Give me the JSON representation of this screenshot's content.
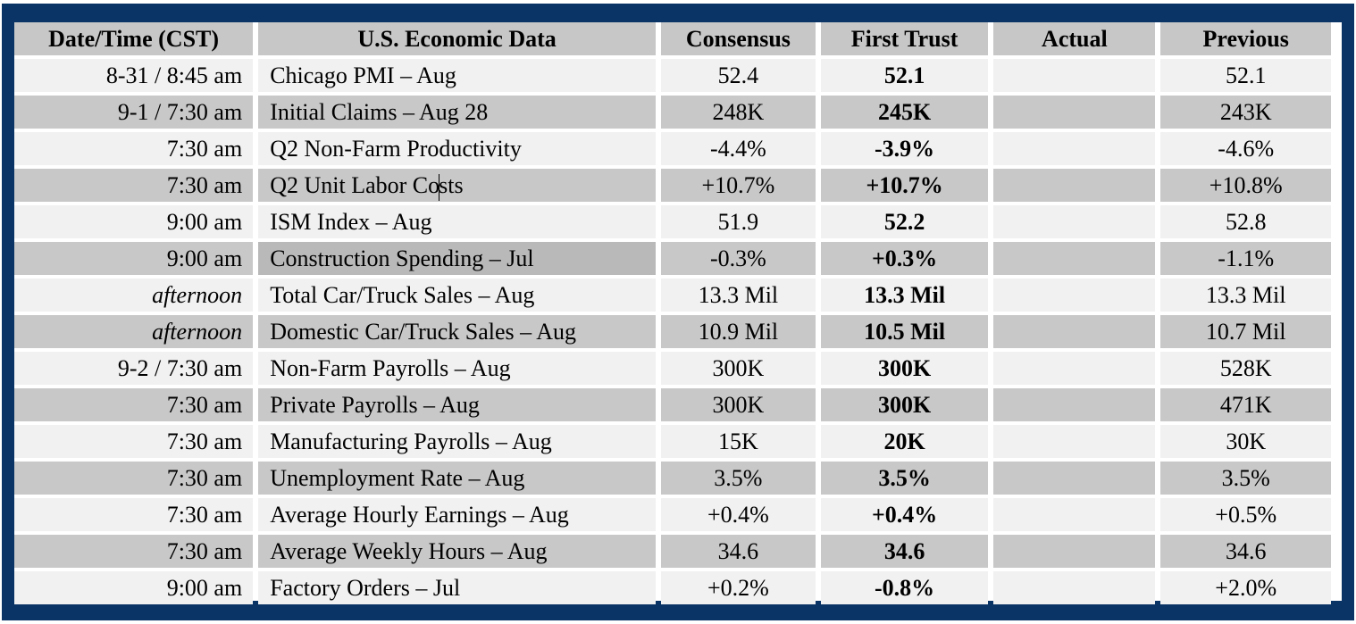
{
  "colors": {
    "frame": "#0b3466",
    "header_bg": "#c7c7c7",
    "row_light": "#f1f1f1",
    "row_dark": "#c8c8c8"
  },
  "headers": {
    "date": "Date/Time (CST)",
    "data": "U.S. Economic Data",
    "consensus": "Consensus",
    "first_trust": "First Trust",
    "actual": "Actual",
    "previous": "Previous"
  },
  "rows": [
    {
      "date": "8-31 / 8:45 am",
      "name": "Chicago PMI – Aug",
      "consensus": "52.4",
      "first_trust": "52.1",
      "actual": "",
      "previous": "52.1"
    },
    {
      "date": "9-1 / 7:30 am",
      "name": "Initial Claims – Aug 28",
      "consensus": "248K",
      "first_trust": "245K",
      "actual": "",
      "previous": "243K"
    },
    {
      "date": "7:30 am",
      "name": "Q2 Non-Farm Productivity",
      "consensus": "-4.4%",
      "first_trust": "-3.9%",
      "actual": "",
      "previous": "-4.6%"
    },
    {
      "date": "7:30 am",
      "name_a": "Q2 Unit Labor Co",
      "name_b": "sts",
      "consensus": "+10.7%",
      "first_trust": "+10.7%",
      "actual": "",
      "previous": "+10.8%"
    },
    {
      "date": "9:00 am",
      "name": "ISM Index – Aug",
      "consensus": "51.9",
      "first_trust": "52.2",
      "actual": "",
      "previous": "52.8"
    },
    {
      "date": "9:00 am",
      "name": "Construction Spending – Jul",
      "consensus": "-0.3%",
      "first_trust": "+0.3%",
      "actual": "",
      "previous": "-1.1%"
    },
    {
      "date": "afternoon",
      "name": "Total Car/Truck Sales – Aug",
      "consensus": "13.3 Mil",
      "first_trust": "13.3 Mil",
      "actual": "",
      "previous": "13.3 Mil"
    },
    {
      "date": "afternoon",
      "name": "Domestic Car/Truck Sales – Aug",
      "consensus": "10.9 Mil",
      "first_trust": "10.5 Mil",
      "actual": "",
      "previous": "10.7 Mil"
    },
    {
      "date": "9-2 / 7:30 am",
      "name": "Non-Farm Payrolls – Aug",
      "consensus": "300K",
      "first_trust": "300K",
      "actual": "",
      "previous": "528K"
    },
    {
      "date": "7:30 am",
      "name": "Private Payrolls – Aug",
      "consensus": "300K",
      "first_trust": "300K",
      "actual": "",
      "previous": "471K"
    },
    {
      "date": "7:30 am",
      "name": "Manufacturing Payrolls – Aug",
      "consensus": "15K",
      "first_trust": "20K",
      "actual": "",
      "previous": "30K"
    },
    {
      "date": "7:30 am",
      "name": "Unemployment Rate – Aug",
      "consensus": "3.5%",
      "first_trust": "3.5%",
      "actual": "",
      "previous": "3.5%"
    },
    {
      "date": "7:30 am",
      "name": "Average Hourly Earnings – Aug",
      "consensus": "+0.4%",
      "first_trust": "+0.4%",
      "actual": "",
      "previous": "+0.5%"
    },
    {
      "date": "7:30 am",
      "name": "Average Weekly Hours – Aug",
      "consensus": "34.6",
      "first_trust": "34.6",
      "actual": "",
      "previous": "34.6"
    },
    {
      "date": "9:00 am",
      "name": "Factory Orders – Jul",
      "consensus": "+0.2%",
      "first_trust": "-0.8%",
      "actual": "",
      "previous": "+2.0%"
    }
  ]
}
